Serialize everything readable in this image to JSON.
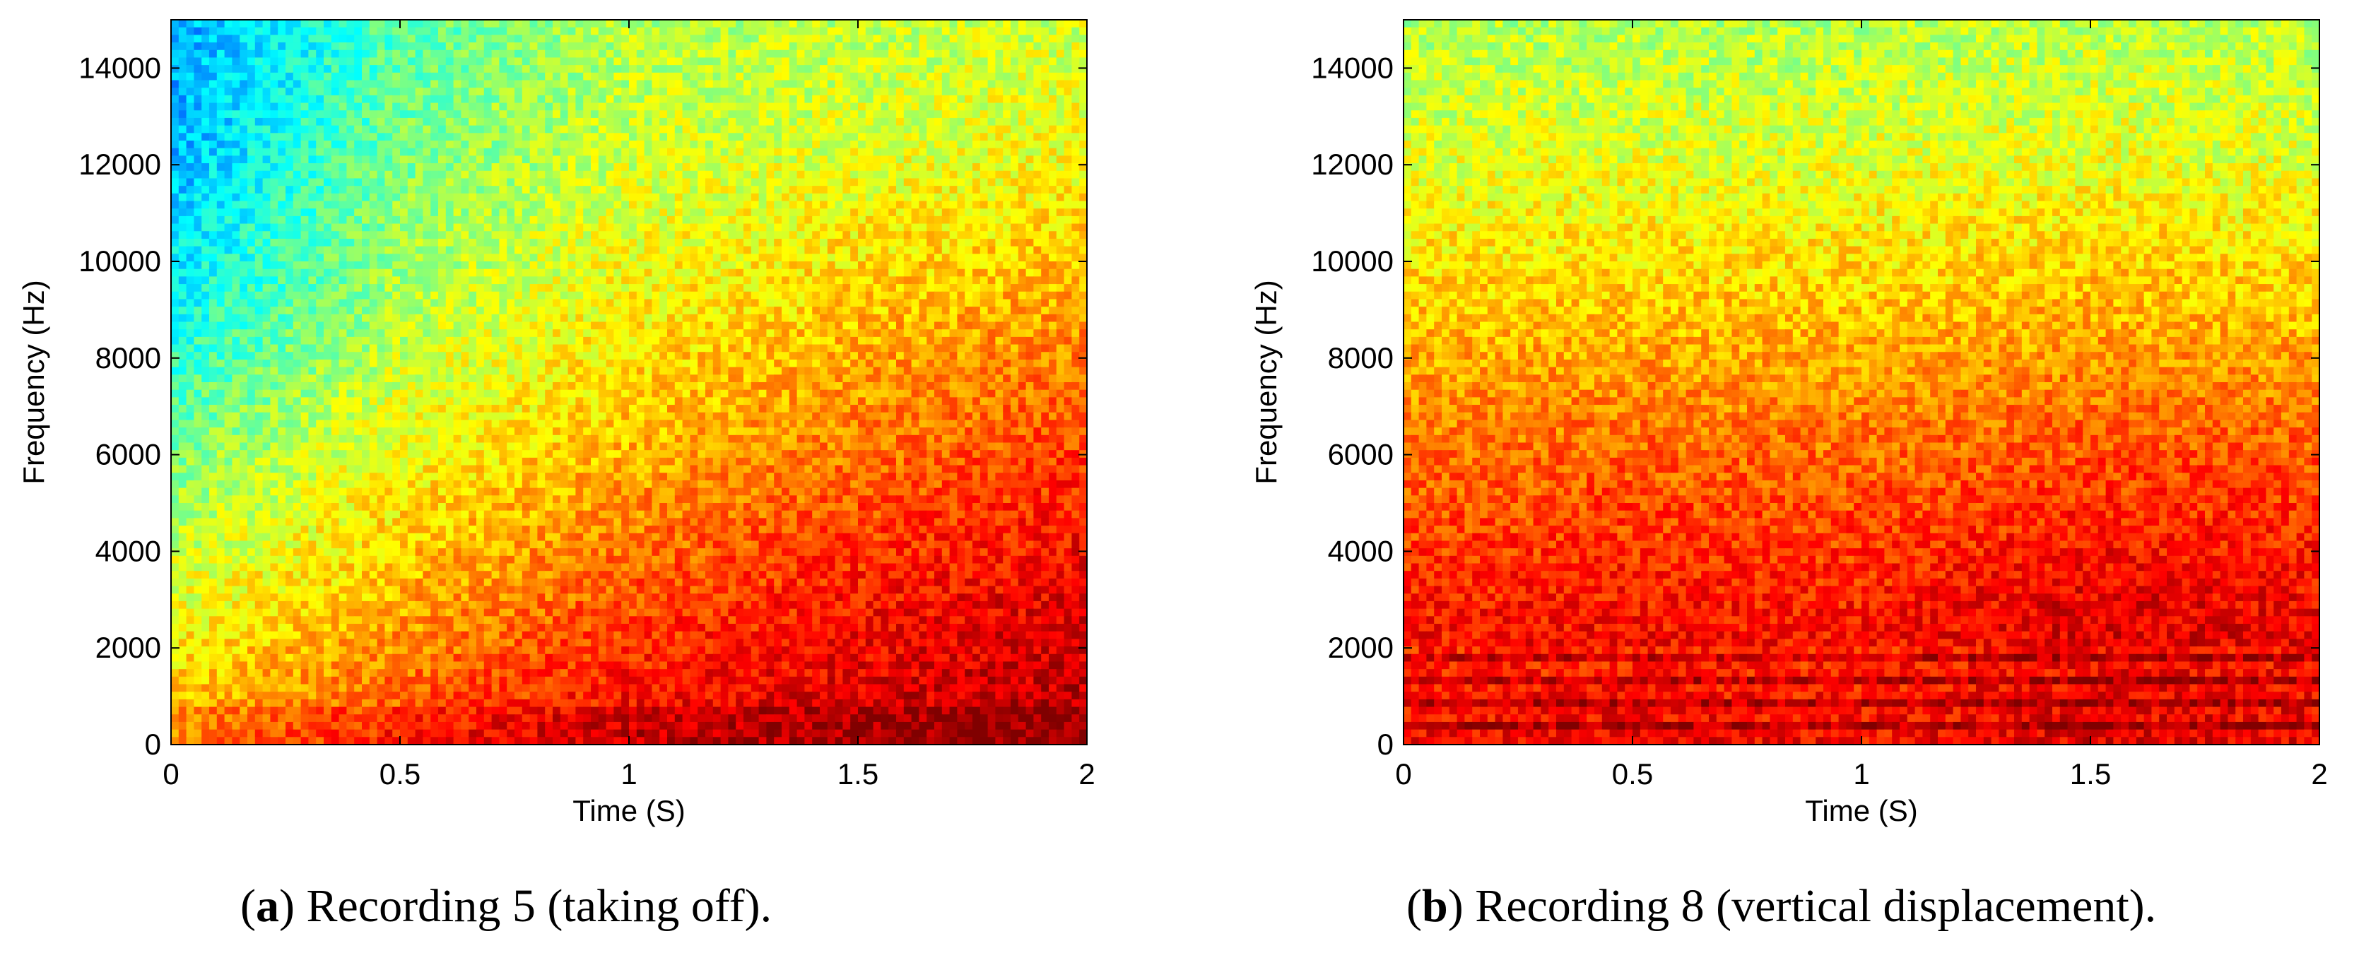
{
  "chart_data": [
    {
      "type": "heatmap",
      "panel": "a",
      "caption": "Recording 5 (taking off).",
      "xlabel": "Time (S)",
      "ylabel": "Frequency (Hz)",
      "xlim": [
        0,
        2
      ],
      "ylim": [
        0,
        15000
      ],
      "x_ticks": [
        0,
        0.5,
        1,
        1.5,
        2
      ],
      "x_tick_labels": [
        "0",
        "0.5",
        "1",
        "1.5",
        "2"
      ],
      "y_ticks": [
        0,
        2000,
        4000,
        6000,
        8000,
        10000,
        12000,
        14000
      ],
      "y_tick_labels": [
        "0",
        "2000",
        "4000",
        "6000",
        "8000",
        "10000",
        "12000",
        "14000"
      ],
      "colormap": "jet",
      "description_of_intensity": "Energy rises with time: cyan/low at high frequencies near t=0, red/high at low frequencies toward t=2 s; strong band below ~800 Hz.",
      "intensity_grid": {
        "time_s": [
          0,
          0.5,
          1,
          1.5,
          2
        ],
        "freq_hz": [
          0,
          3000,
          6000,
          9000,
          12000,
          15000
        ],
        "level_0_to_1": [
          [
            0.72,
            0.82,
            0.9,
            0.93,
            0.96
          ],
          [
            0.6,
            0.7,
            0.8,
            0.86,
            0.9
          ],
          [
            0.5,
            0.62,
            0.7,
            0.76,
            0.82
          ],
          [
            0.38,
            0.55,
            0.63,
            0.68,
            0.72
          ],
          [
            0.3,
            0.5,
            0.58,
            0.6,
            0.62
          ],
          [
            0.28,
            0.46,
            0.55,
            0.56,
            0.58
          ]
        ]
      }
    },
    {
      "type": "heatmap",
      "panel": "b",
      "caption": "Recording 8 (vertical displacement).",
      "xlabel": "Time (S)",
      "ylabel": "Frequency (Hz)",
      "xlim": [
        0,
        2
      ],
      "ylim": [
        0,
        15000
      ],
      "x_ticks": [
        0,
        0.5,
        1,
        1.5,
        2
      ],
      "x_tick_labels": [
        "0",
        "0.5",
        "1",
        "1.5",
        "2"
      ],
      "y_ticks": [
        0,
        2000,
        4000,
        6000,
        8000,
        10000,
        12000,
        14000
      ],
      "y_tick_labels": [
        "0",
        "2000",
        "4000",
        "6000",
        "8000",
        "10000",
        "12000",
        "14000"
      ],
      "colormap": "jet",
      "description_of_intensity": "High energy (red) below ~7000 Hz across all times with horizontal harmonic bands below 2000 Hz; yellow/green above 9000 Hz.",
      "intensity_grid": {
        "time_s": [
          0,
          0.5,
          1,
          1.5,
          2
        ],
        "freq_hz": [
          0,
          3000,
          6000,
          9000,
          12000,
          15000
        ],
        "level_0_to_1": [
          [
            0.9,
            0.92,
            0.9,
            0.93,
            0.92
          ],
          [
            0.85,
            0.86,
            0.85,
            0.9,
            0.88
          ],
          [
            0.76,
            0.78,
            0.77,
            0.8,
            0.79
          ],
          [
            0.68,
            0.68,
            0.68,
            0.7,
            0.68
          ],
          [
            0.6,
            0.6,
            0.6,
            0.61,
            0.6
          ],
          [
            0.55,
            0.55,
            0.55,
            0.56,
            0.55
          ]
        ]
      }
    }
  ],
  "captions": [
    {
      "label": "a",
      "text": "Recording 5 (taking off)."
    },
    {
      "label": "b",
      "text": "Recording 8 (vertical displacement)."
    }
  ]
}
